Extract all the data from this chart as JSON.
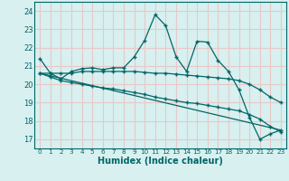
{
  "xlabel": "Humidex (Indice chaleur)",
  "bg_color": "#d8f0f0",
  "grid_color": "#e8c8c8",
  "line_color": "#006666",
  "xlim": [
    -0.5,
    23.5
  ],
  "ylim": [
    16.5,
    24.5
  ],
  "yticks": [
    17,
    18,
    19,
    20,
    21,
    22,
    23,
    24
  ],
  "xticks": [
    0,
    1,
    2,
    3,
    4,
    5,
    6,
    7,
    8,
    9,
    10,
    11,
    12,
    13,
    14,
    15,
    16,
    17,
    18,
    19,
    20,
    21,
    22,
    23
  ],
  "line1_x": [
    0,
    1,
    2,
    3,
    4,
    5,
    6,
    7,
    8,
    9,
    10,
    11,
    12,
    13,
    14,
    15,
    16,
    17,
    18,
    19,
    20,
    21,
    22,
    23
  ],
  "line1_y": [
    21.4,
    20.6,
    20.3,
    20.7,
    20.85,
    20.9,
    20.8,
    20.9,
    20.9,
    21.5,
    22.4,
    23.8,
    23.2,
    21.5,
    20.7,
    22.35,
    22.3,
    21.3,
    20.7,
    19.7,
    18.2,
    17.0,
    17.3,
    17.5
  ],
  "line2_x": [
    0,
    1,
    2,
    3,
    4,
    5,
    6,
    7,
    8,
    9,
    10,
    11,
    12,
    13,
    14,
    15,
    16,
    17,
    18,
    19,
    20,
    21,
    22,
    23
  ],
  "line2_y": [
    20.6,
    20.6,
    20.6,
    20.6,
    20.7,
    20.7,
    20.7,
    20.7,
    20.7,
    20.7,
    20.65,
    20.6,
    20.6,
    20.55,
    20.5,
    20.45,
    20.4,
    20.35,
    20.3,
    20.2,
    20.0,
    19.7,
    19.3,
    19.0
  ],
  "line3_x": [
    0,
    1,
    2,
    3,
    4,
    5,
    6,
    7,
    8,
    9,
    10,
    11,
    12,
    13,
    14,
    15,
    16,
    17,
    18,
    19,
    20,
    21,
    22,
    23
  ],
  "line3_y": [
    20.6,
    20.4,
    20.2,
    20.1,
    20.0,
    19.9,
    19.8,
    19.75,
    19.65,
    19.55,
    19.45,
    19.3,
    19.2,
    19.1,
    19.0,
    18.95,
    18.85,
    18.75,
    18.65,
    18.55,
    18.35,
    18.1,
    17.7,
    17.4
  ],
  "line4_x": [
    0,
    23
  ],
  "line4_y": [
    20.6,
    17.5
  ]
}
